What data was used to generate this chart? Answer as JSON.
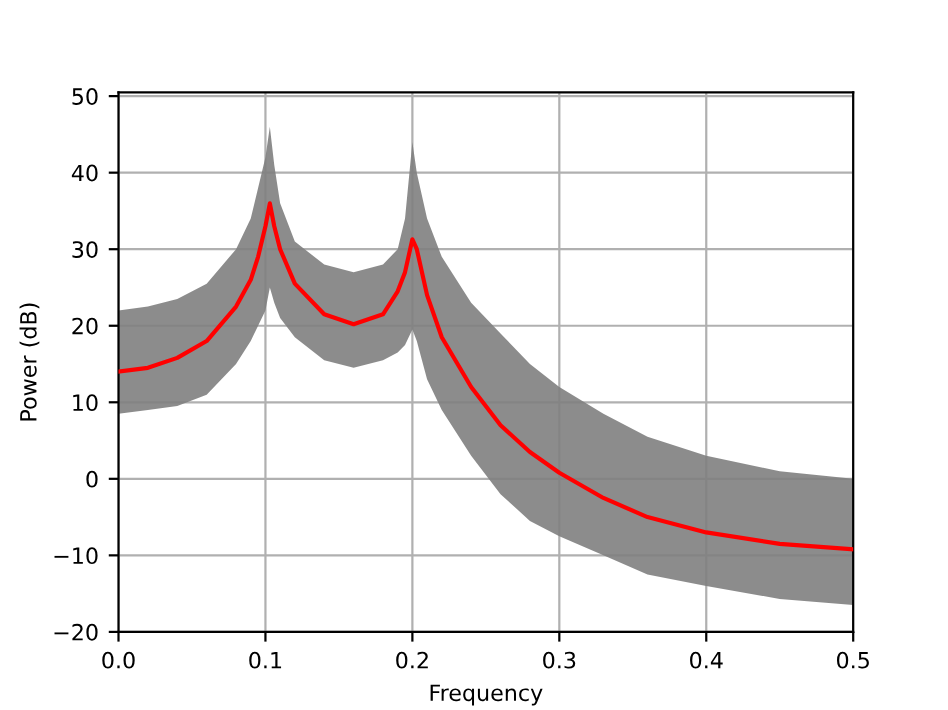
{
  "chart_data": {
    "type": "line",
    "xlabel": "Frequency",
    "ylabel": "Power (dB)",
    "series": [
      {
        "color": "#ff0000",
        "x": [
          0,
          0.02,
          0.04,
          0.06,
          0.08,
          0.09,
          0.095,
          0.1,
          0.103,
          0.106,
          0.11,
          0.12,
          0.14,
          0.16,
          0.18,
          0.19,
          0.195,
          0.2,
          0.203,
          0.21,
          0.22,
          0.24,
          0.26,
          0.28,
          0.3,
          0.33,
          0.36,
          0.4,
          0.45,
          0.5
        ],
        "values": [
          14,
          14.5,
          15.8,
          18,
          22.5,
          26,
          29,
          33,
          36,
          33,
          30,
          25.5,
          21.5,
          20.2,
          21.5,
          24.5,
          27,
          31.3,
          30,
          24,
          18.5,
          12,
          7,
          3.5,
          0.8,
          -2.5,
          -5,
          -7,
          -8.5,
          -9.2
        ],
        "lower": [
          8.5,
          9,
          9.5,
          11,
          15,
          18,
          20,
          22,
          25,
          23,
          21,
          18.5,
          15.5,
          14.5,
          15.5,
          16.5,
          17.5,
          19.5,
          18,
          13,
          9,
          3,
          -2,
          -5.5,
          -7.5,
          -10,
          -12.5,
          -14,
          -15.7,
          -16.5
        ],
        "upper": [
          22,
          22.5,
          23.5,
          25.5,
          30,
          34,
          38,
          42,
          46,
          41,
          36,
          31,
          28,
          27,
          28,
          30,
          34,
          44,
          40,
          34,
          29,
          23,
          19,
          15,
          12,
          8.5,
          5.5,
          3,
          1,
          0
        ]
      }
    ],
    "xlim": [
      0,
      0.5
    ],
    "ylim": [
      -20,
      50.5
    ],
    "xticks": [
      {
        "value": 0,
        "label": "0.0"
      },
      0.1,
      0.2,
      0.3,
      0.4,
      0.5
    ],
    "yticks": [
      {
        "value": -20,
        "label": "−20"
      },
      {
        "value": -10,
        "label": "−10"
      },
      0,
      10,
      20,
      30,
      40,
      50
    ],
    "grid": true,
    "legend": false,
    "marker": "none",
    "line_style": "solid"
  }
}
